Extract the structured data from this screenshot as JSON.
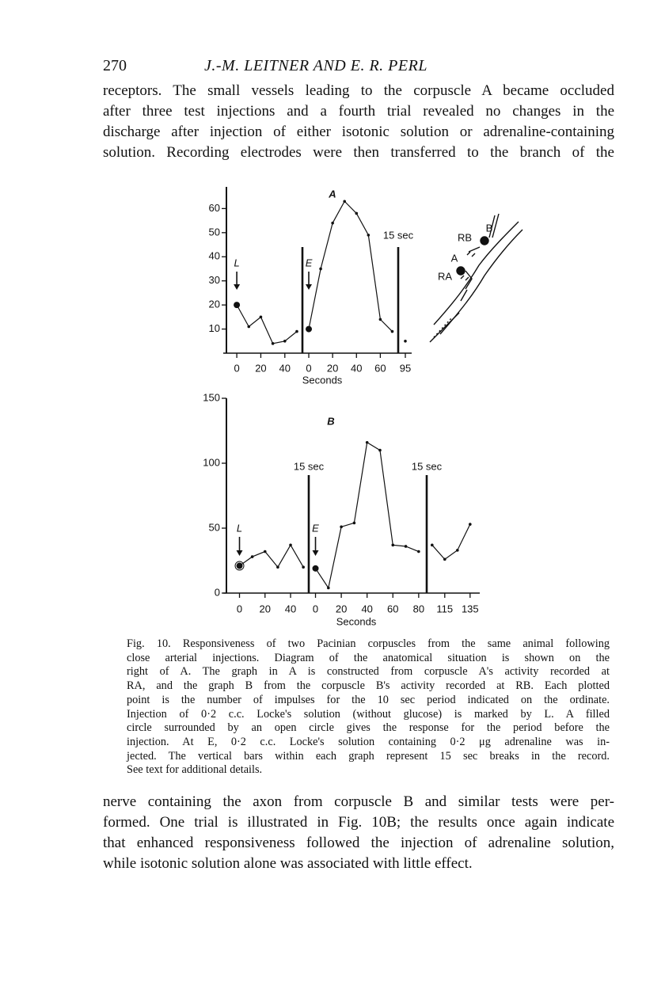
{
  "header": {
    "page_number": "270",
    "running_title": "J.-M. LEITNER AND E. R. PERL"
  },
  "body_top": [
    "receptors. The small vessels leading to the corpuscle A became occluded",
    "after three test injections and a fourth trial revealed no changes in the",
    "discharge after injection of either isotonic solution or adrenaline-containing",
    "solution. Recording electrodes were then transferred to the branch of the"
  ],
  "figure": {
    "diagram_labels": [
      "B",
      "RB",
      "A",
      "RA"
    ],
    "caption": [
      "Fig. 10. Responsiveness of two Pacinian corpuscles from the same animal following",
      "close arterial injections. Diagram of the anatomical situation is shown on the",
      "right of A. The graph in A is constructed from corpuscle A's activity recorded at",
      "RA, and the graph B from the corpuscle B's activity recorded at RB. Each plotted",
      "point is the number of impulses for the 10 sec period indicated on the ordinate.",
      "Injection of 0·2 c.c. Locke's solution (without glucose) is marked by L. A filled",
      "circle surrounded by an open circle gives the response for the period before the",
      "injection. At E, 0·2 c.c. Locke's solution containing 0·2 μg adrenaline was in-",
      "jected. The vertical bars within each graph represent 15 sec breaks in the record.",
      "See text for additional details."
    ]
  },
  "chart_data": [
    {
      "type": "line",
      "title": "A",
      "x_label": "Seconds",
      "color": "#111111",
      "ylim": [
        0,
        69
      ],
      "yticks": [
        10,
        20,
        30,
        40,
        50,
        60
      ],
      "segments": [
        {
          "xlim": [
            -6,
            52
          ],
          "xticks": [
            0,
            20,
            40
          ],
          "marker": "L",
          "x": [
            0,
            10,
            20,
            30,
            40,
            50
          ],
          "values": [
            20,
            11,
            15,
            4,
            5,
            9
          ]
        },
        {
          "xlim": [
            -4,
            75
          ],
          "xticks": [
            0,
            20,
            40,
            60
          ],
          "marker": "E",
          "x": [
            0,
            10,
            20,
            30,
            40,
            50,
            60,
            70
          ],
          "values": [
            10,
            35,
            54,
            63,
            58,
            49,
            14,
            9
          ]
        },
        {
          "xlim": [
            90,
            100
          ],
          "xticks": [
            95
          ],
          "break_label": "15 sec",
          "x": [
            95
          ],
          "values": [
            5
          ]
        }
      ]
    },
    {
      "type": "line",
      "title": "B",
      "x_label": "Seconds",
      "color": "#111111",
      "ylim": [
        0,
        150
      ],
      "yticks": [
        0,
        50,
        100,
        150
      ],
      "segments": [
        {
          "xlim": [
            -9,
            53
          ],
          "xticks": [
            0,
            20,
            40
          ],
          "marker": "L",
          "x": [
            0,
            10,
            20,
            30,
            40,
            50
          ],
          "values": [
            21,
            28,
            32,
            20,
            37,
            20
          ]
        },
        {
          "xlim": [
            -4,
            85
          ],
          "xticks": [
            0,
            20,
            40,
            60,
            80
          ],
          "marker": "E",
          "break_label": "15 sec",
          "x": [
            0,
            10,
            20,
            30,
            40,
            50,
            60,
            70,
            80
          ],
          "values": [
            19,
            4,
            51,
            54,
            116,
            110,
            37,
            36,
            32
          ]
        },
        {
          "xlim": [
            102,
            142
          ],
          "xticks": [
            115,
            135
          ],
          "break_label": "15 sec",
          "x": [
            105,
            115,
            125,
            135
          ],
          "values": [
            37,
            26,
            33,
            53
          ]
        }
      ]
    }
  ],
  "body_bottom": [
    "nerve containing the axon from corpuscle B and similar tests were per-",
    "formed. One trial is illustrated in Fig. 10B; the results once again indicate",
    "that enhanced responsiveness followed the injection of adrenaline solution,",
    "while isotonic solution alone was associated with little effect."
  ]
}
